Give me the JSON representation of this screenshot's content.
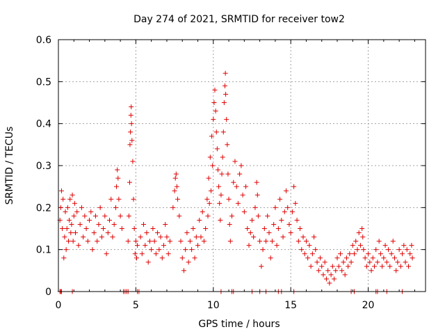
{
  "chart_data": {
    "type": "scatter",
    "title": "Day 274 of 2021, SRMTID for receiver tow2",
    "xlabel": "GPS time / hours",
    "ylabel": "SRMTID / TECUs",
    "xlim": [
      0,
      23.7
    ],
    "ylim": [
      0,
      0.6
    ],
    "xticks": [
      0,
      5,
      10,
      15,
      20
    ],
    "xtick_labels": [
      "0",
      "5",
      "10",
      "15",
      "20"
    ],
    "yticks": [
      0,
      0.1,
      0.2,
      0.3,
      0.4,
      0.5,
      0.6
    ],
    "ytick_labels": [
      "0",
      "0.1",
      "0.2",
      "0.3",
      "0.4",
      "0.5",
      "0.6"
    ],
    "grid": true,
    "marker": "+",
    "color": "#e00000",
    "series": [
      {
        "name": "SRMTID",
        "points": [
          [
            0.1,
            0.17
          ],
          [
            0.15,
            0.2
          ],
          [
            0.2,
            0.24
          ],
          [
            0.25,
            0.15
          ],
          [
            0.3,
            0.22
          ],
          [
            0.35,
            0.08
          ],
          [
            0.4,
            0.13
          ],
          [
            0.45,
            0.19
          ],
          [
            0.5,
            0.1
          ],
          [
            0.55,
            0.15
          ],
          [
            0.6,
            0.2
          ],
          [
            0.65,
            0.12
          ],
          [
            0.7,
            0.17
          ],
          [
            0.75,
            0.22
          ],
          [
            0.8,
            0.14
          ],
          [
            0.85,
            0.16
          ],
          [
            0.9,
            0.23
          ],
          [
            0.95,
            0.12
          ],
          [
            1.0,
            0.18
          ],
          [
            1.05,
            0.21
          ],
          [
            1.1,
            0.14
          ],
          [
            1.2,
            0.19
          ],
          [
            1.3,
            0.11
          ],
          [
            1.4,
            0.16
          ],
          [
            1.5,
            0.2
          ],
          [
            1.6,
            0.13
          ],
          [
            1.7,
            0.18
          ],
          [
            1.8,
            0.15
          ],
          [
            1.9,
            0.12
          ],
          [
            2.0,
            0.17
          ],
          [
            2.1,
            0.19
          ],
          [
            2.2,
            0.1
          ],
          [
            2.3,
            0.14
          ],
          [
            2.4,
            0.18
          ],
          [
            2.5,
            0.12
          ],
          [
            2.6,
            0.16
          ],
          [
            2.7,
            0.2
          ],
          [
            2.8,
            0.13
          ],
          [
            2.9,
            0.15
          ],
          [
            3.0,
            0.18
          ],
          [
            3.1,
            0.09
          ],
          [
            3.2,
            0.14
          ],
          [
            3.3,
            0.17
          ],
          [
            3.4,
            0.22
          ],
          [
            3.5,
            0.13
          ],
          [
            3.6,
            0.16
          ],
          [
            3.7,
            0.2
          ],
          [
            3.75,
            0.25
          ],
          [
            3.8,
            0.29
          ],
          [
            3.85,
            0.27
          ],
          [
            3.9,
            0.22
          ],
          [
            4.0,
            0.18
          ],
          [
            4.1,
            0.15
          ],
          [
            4.5,
            0.12
          ],
          [
            4.55,
            0.18
          ],
          [
            4.6,
            0.26
          ],
          [
            4.62,
            0.35
          ],
          [
            4.65,
            0.38
          ],
          [
            4.68,
            0.42
          ],
          [
            4.7,
            0.44
          ],
          [
            4.72,
            0.4
          ],
          [
            4.75,
            0.36
          ],
          [
            4.8,
            0.31
          ],
          [
            4.85,
            0.22
          ],
          [
            4.9,
            0.15
          ],
          [
            4.95,
            0.09
          ],
          [
            5.0,
            0.12
          ],
          [
            5.05,
            0.08
          ],
          [
            5.1,
            0.11
          ],
          [
            5.3,
            0.13
          ],
          [
            5.4,
            0.09
          ],
          [
            5.5,
            0.16
          ],
          [
            5.6,
            0.11
          ],
          [
            5.7,
            0.14
          ],
          [
            5.8,
            0.07
          ],
          [
            5.9,
            0.12
          ],
          [
            6.0,
            0.1
          ],
          [
            6.1,
            0.15
          ],
          [
            6.2,
            0.12
          ],
          [
            6.3,
            0.09
          ],
          [
            6.4,
            0.14
          ],
          [
            6.5,
            0.1
          ],
          [
            6.6,
            0.13
          ],
          [
            6.7,
            0.08
          ],
          [
            6.8,
            0.11
          ],
          [
            6.9,
            0.16
          ],
          [
            7.0,
            0.13
          ],
          [
            7.1,
            0.09
          ],
          [
            7.2,
            0.12
          ],
          [
            7.4,
            0.2
          ],
          [
            7.5,
            0.24
          ],
          [
            7.55,
            0.27
          ],
          [
            7.6,
            0.28
          ],
          [
            7.65,
            0.25
          ],
          [
            7.7,
            0.22
          ],
          [
            7.8,
            0.18
          ],
          [
            7.9,
            0.12
          ],
          [
            8.0,
            0.08
          ],
          [
            8.1,
            0.05
          ],
          [
            8.2,
            0.1
          ],
          [
            8.3,
            0.14
          ],
          [
            8.4,
            0.07
          ],
          [
            8.5,
            0.12
          ],
          [
            8.6,
            0.1
          ],
          [
            8.7,
            0.15
          ],
          [
            8.8,
            0.08
          ],
          [
            8.9,
            0.13
          ],
          [
            9.0,
            0.11
          ],
          [
            9.1,
            0.17
          ],
          [
            9.2,
            0.13
          ],
          [
            9.3,
            0.19
          ],
          [
            9.4,
            0.12
          ],
          [
            9.5,
            0.15
          ],
          [
            9.6,
            0.22
          ],
          [
            9.65,
            0.18
          ],
          [
            9.7,
            0.27
          ],
          [
            9.75,
            0.21
          ],
          [
            9.8,
            0.32
          ],
          [
            9.85,
            0.24
          ],
          [
            9.9,
            0.37
          ],
          [
            9.95,
            0.3
          ],
          [
            10.0,
            0.41
          ],
          [
            10.05,
            0.45
          ],
          [
            10.1,
            0.48
          ],
          [
            10.15,
            0.43
          ],
          [
            10.2,
            0.38
          ],
          [
            10.25,
            0.34
          ],
          [
            10.3,
            0.29
          ],
          [
            10.35,
            0.25
          ],
          [
            10.4,
            0.21
          ],
          [
            10.45,
            0.17
          ],
          [
            10.5,
            0.23
          ],
          [
            10.55,
            0.28
          ],
          [
            10.6,
            0.32
          ],
          [
            10.65,
            0.38
          ],
          [
            10.7,
            0.45
          ],
          [
            10.75,
            0.49
          ],
          [
            10.78,
            0.52
          ],
          [
            10.8,
            0.47
          ],
          [
            10.85,
            0.41
          ],
          [
            10.9,
            0.35
          ],
          [
            10.95,
            0.28
          ],
          [
            11.0,
            0.22
          ],
          [
            11.05,
            0.16
          ],
          [
            11.1,
            0.12
          ],
          [
            11.2,
            0.18
          ],
          [
            11.3,
            0.26
          ],
          [
            11.4,
            0.31
          ],
          [
            11.5,
            0.25
          ],
          [
            11.6,
            0.21
          ],
          [
            11.7,
            0.28
          ],
          [
            11.8,
            0.3
          ],
          [
            11.9,
            0.23
          ],
          [
            12.0,
            0.19
          ],
          [
            12.1,
            0.25
          ],
          [
            12.2,
            0.15
          ],
          [
            12.3,
            0.11
          ],
          [
            12.4,
            0.14
          ],
          [
            12.5,
            0.17
          ],
          [
            12.6,
            0.13
          ],
          [
            12.7,
            0.2
          ],
          [
            12.8,
            0.26
          ],
          [
            12.85,
            0.23
          ],
          [
            12.9,
            0.18
          ],
          [
            13.0,
            0.12
          ],
          [
            13.1,
            0.06
          ],
          [
            13.2,
            0.1
          ],
          [
            13.3,
            0.15
          ],
          [
            13.4,
            0.12
          ],
          [
            13.5,
            0.18
          ],
          [
            13.6,
            0.14
          ],
          [
            13.7,
            0.08
          ],
          [
            13.8,
            0.12
          ],
          [
            13.9,
            0.16
          ],
          [
            14.0,
            0.2
          ],
          [
            14.1,
            0.11
          ],
          [
            14.2,
            0.15
          ],
          [
            14.3,
            0.22
          ],
          [
            14.4,
            0.17
          ],
          [
            14.5,
            0.13
          ],
          [
            14.6,
            0.19
          ],
          [
            14.7,
            0.24
          ],
          [
            14.8,
            0.2
          ],
          [
            14.9,
            0.16
          ],
          [
            15.0,
            0.14
          ],
          [
            15.1,
            0.19
          ],
          [
            15.2,
            0.25
          ],
          [
            15.3,
            0.21
          ],
          [
            15.4,
            0.17
          ],
          [
            15.5,
            0.12
          ],
          [
            15.6,
            0.15
          ],
          [
            15.7,
            0.1
          ],
          [
            15.8,
            0.13
          ],
          [
            15.9,
            0.09
          ],
          [
            16.0,
            0.12
          ],
          [
            16.1,
            0.08
          ],
          [
            16.2,
            0.11
          ],
          [
            16.3,
            0.06
          ],
          [
            16.4,
            0.09
          ],
          [
            16.5,
            0.13
          ],
          [
            16.6,
            0.1
          ],
          [
            16.7,
            0.07
          ],
          [
            16.8,
            0.05
          ],
          [
            16.9,
            0.08
          ],
          [
            17.0,
            0.06
          ],
          [
            17.1,
            0.04
          ],
          [
            17.2,
            0.07
          ],
          [
            17.3,
            0.03
          ],
          [
            17.4,
            0.05
          ],
          [
            17.5,
            0.02
          ],
          [
            17.6,
            0.04
          ],
          [
            17.7,
            0.06
          ],
          [
            17.8,
            0.03
          ],
          [
            17.9,
            0.05
          ],
          [
            18.0,
            0.08
          ],
          [
            18.1,
            0.06
          ],
          [
            18.2,
            0.09
          ],
          [
            18.3,
            0.05
          ],
          [
            18.4,
            0.07
          ],
          [
            18.5,
            0.04
          ],
          [
            18.6,
            0.08
          ],
          [
            18.7,
            0.06
          ],
          [
            18.8,
            0.09
          ],
          [
            18.9,
            0.07
          ],
          [
            19.0,
            0.11
          ],
          [
            19.1,
            0.09
          ],
          [
            19.2,
            0.12
          ],
          [
            19.3,
            0.1
          ],
          [
            19.4,
            0.14
          ],
          [
            19.5,
            0.11
          ],
          [
            19.6,
            0.15
          ],
          [
            19.65,
            0.13
          ],
          [
            19.7,
            0.1
          ],
          [
            19.8,
            0.08
          ],
          [
            19.9,
            0.06
          ],
          [
            20.0,
            0.09
          ],
          [
            20.1,
            0.07
          ],
          [
            20.2,
            0.05
          ],
          [
            20.3,
            0.08
          ],
          [
            20.4,
            0.06
          ],
          [
            20.5,
            0.1
          ],
          [
            20.6,
            0.07
          ],
          [
            20.7,
            0.12
          ],
          [
            20.8,
            0.09
          ],
          [
            20.9,
            0.06
          ],
          [
            21.0,
            0.08
          ],
          [
            21.1,
            0.11
          ],
          [
            21.2,
            0.07
          ],
          [
            21.3,
            0.1
          ],
          [
            21.4,
            0.06
          ],
          [
            21.5,
            0.09
          ],
          [
            21.6,
            0.12
          ],
          [
            21.7,
            0.08
          ],
          [
            21.8,
            0.05
          ],
          [
            21.9,
            0.07
          ],
          [
            22.0,
            0.1
          ],
          [
            22.1,
            0.06
          ],
          [
            22.2,
            0.09
          ],
          [
            22.3,
            0.11
          ],
          [
            22.4,
            0.07
          ],
          [
            22.5,
            0.1
          ],
          [
            22.6,
            0.06
          ],
          [
            22.7,
            0.09
          ],
          [
            22.8,
            0.11
          ],
          [
            22.85,
            0.08
          ],
          [
            0.1,
            0.0
          ],
          [
            0.15,
            0.0
          ],
          [
            0.2,
            0.0
          ],
          [
            0.9,
            0.0
          ],
          [
            4.2,
            0.0
          ],
          [
            4.3,
            0.0
          ],
          [
            4.4,
            0.0
          ],
          [
            4.5,
            0.0
          ],
          [
            5.1,
            0.0
          ],
          [
            5.2,
            0.0
          ],
          [
            10.5,
            0.0
          ],
          [
            11.2,
            0.0
          ],
          [
            11.3,
            0.0
          ],
          [
            12.5,
            0.0
          ],
          [
            13.0,
            0.0
          ],
          [
            13.4,
            0.0
          ],
          [
            14.2,
            0.0
          ],
          [
            14.4,
            0.0
          ],
          [
            15.2,
            0.0
          ],
          [
            18.9,
            0.0
          ],
          [
            19.1,
            0.0
          ],
          [
            20.5,
            0.0
          ],
          [
            20.6,
            0.0
          ],
          [
            21.2,
            0.0
          ],
          [
            22.2,
            0.0
          ]
        ]
      }
    ]
  }
}
